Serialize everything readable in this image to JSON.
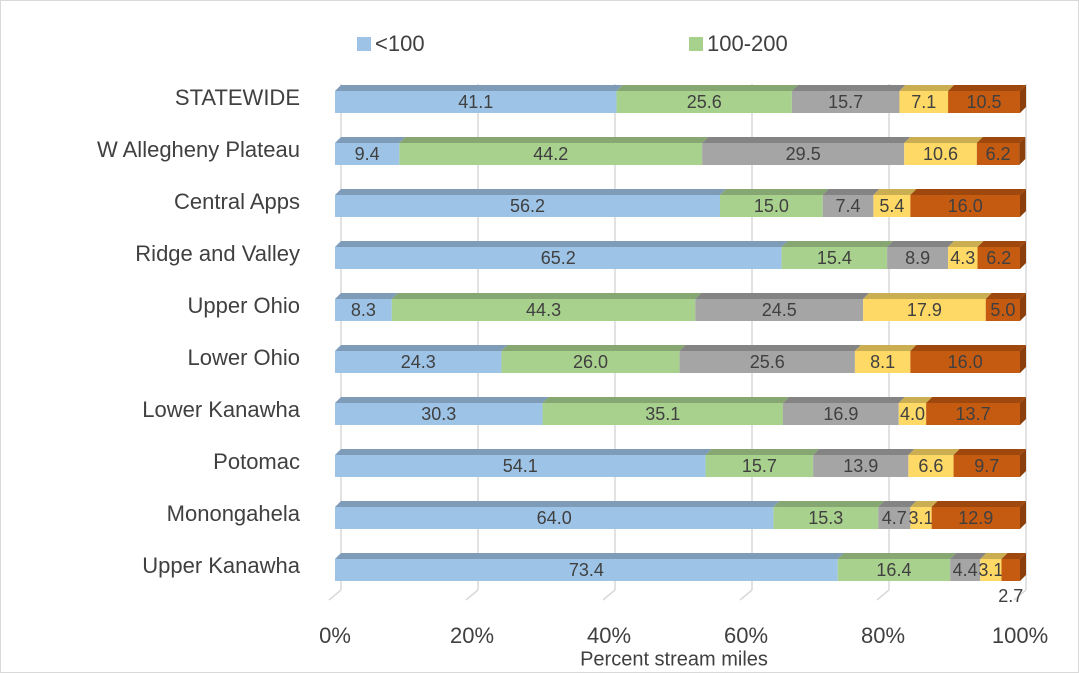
{
  "chart_data": {
    "type": "stacked-bar-horizontal",
    "categories": [
      "STATEWIDE",
      "W Allegheny Plateau",
      "Central Apps",
      "Ridge and Valley",
      "Upper Ohio",
      "Lower Ohio",
      "Lower Kanawha",
      "Potomac",
      "Monongahela",
      "Upper Kanawha"
    ],
    "series": [
      {
        "name": "<100",
        "color": "#9dc3e6",
        "values": [
          41.1,
          9.4,
          56.2,
          65.2,
          8.3,
          24.3,
          30.3,
          54.1,
          64.0,
          73.4
        ],
        "value_labels": [
          "41.1",
          "9.4",
          "56.2",
          "65.2",
          "8.3",
          "24.3",
          "30.3",
          "54.1",
          "64.0",
          "73.4"
        ]
      },
      {
        "name": "100-200",
        "color": "#a9d18e",
        "values": [
          25.6,
          44.2,
          15.0,
          15.4,
          44.3,
          26.0,
          35.1,
          15.7,
          15.3,
          16.4
        ],
        "value_labels": [
          "25.6",
          "44.2",
          "15.0",
          "15.4",
          "44.3",
          "26.0",
          "35.1",
          "15.7",
          "15.3",
          "16.4"
        ]
      },
      {
        "color": "#a5a5a5",
        "values": [
          15.7,
          29.5,
          7.4,
          8.9,
          24.5,
          25.6,
          16.9,
          13.9,
          4.7,
          4.4
        ],
        "value_labels": [
          "15.7",
          "29.5",
          "7.4",
          "8.9",
          "24.5",
          "25.6",
          "16.9",
          "13.9",
          "4.7",
          "4.4"
        ]
      },
      {
        "color": "#ffd966",
        "values": [
          7.1,
          10.6,
          5.4,
          4.3,
          17.9,
          8.1,
          4.0,
          6.6,
          3.1,
          3.1
        ],
        "value_labels": [
          "7.1",
          "10.6",
          "5.4",
          "4.3",
          "17.9",
          "8.1",
          "4.0",
          "6.6",
          "3.1",
          "3.1"
        ]
      },
      {
        "color": "#c55a11",
        "values": [
          10.5,
          6.2,
          16.0,
          6.2,
          5.0,
          16.0,
          13.7,
          9.7,
          12.9,
          2.7
        ],
        "value_labels": [
          "10.5",
          "6.2",
          "16.0",
          "6.2",
          "5.0",
          "16.0",
          "13.7",
          "9.7",
          "12.9",
          "2.7"
        ]
      }
    ],
    "xlim": [
      0,
      100
    ],
    "xticks": [
      {
        "value": 0,
        "label": "0%"
      },
      {
        "value": 20,
        "label": "20%"
      },
      {
        "value": 40,
        "label": "40%"
      },
      {
        "value": 60,
        "label": "60%"
      },
      {
        "value": 80,
        "label": "80%"
      },
      {
        "value": 100,
        "label": "100%"
      }
    ],
    "x_label": "Percent stream miles",
    "grid": true,
    "legend": "top"
  }
}
